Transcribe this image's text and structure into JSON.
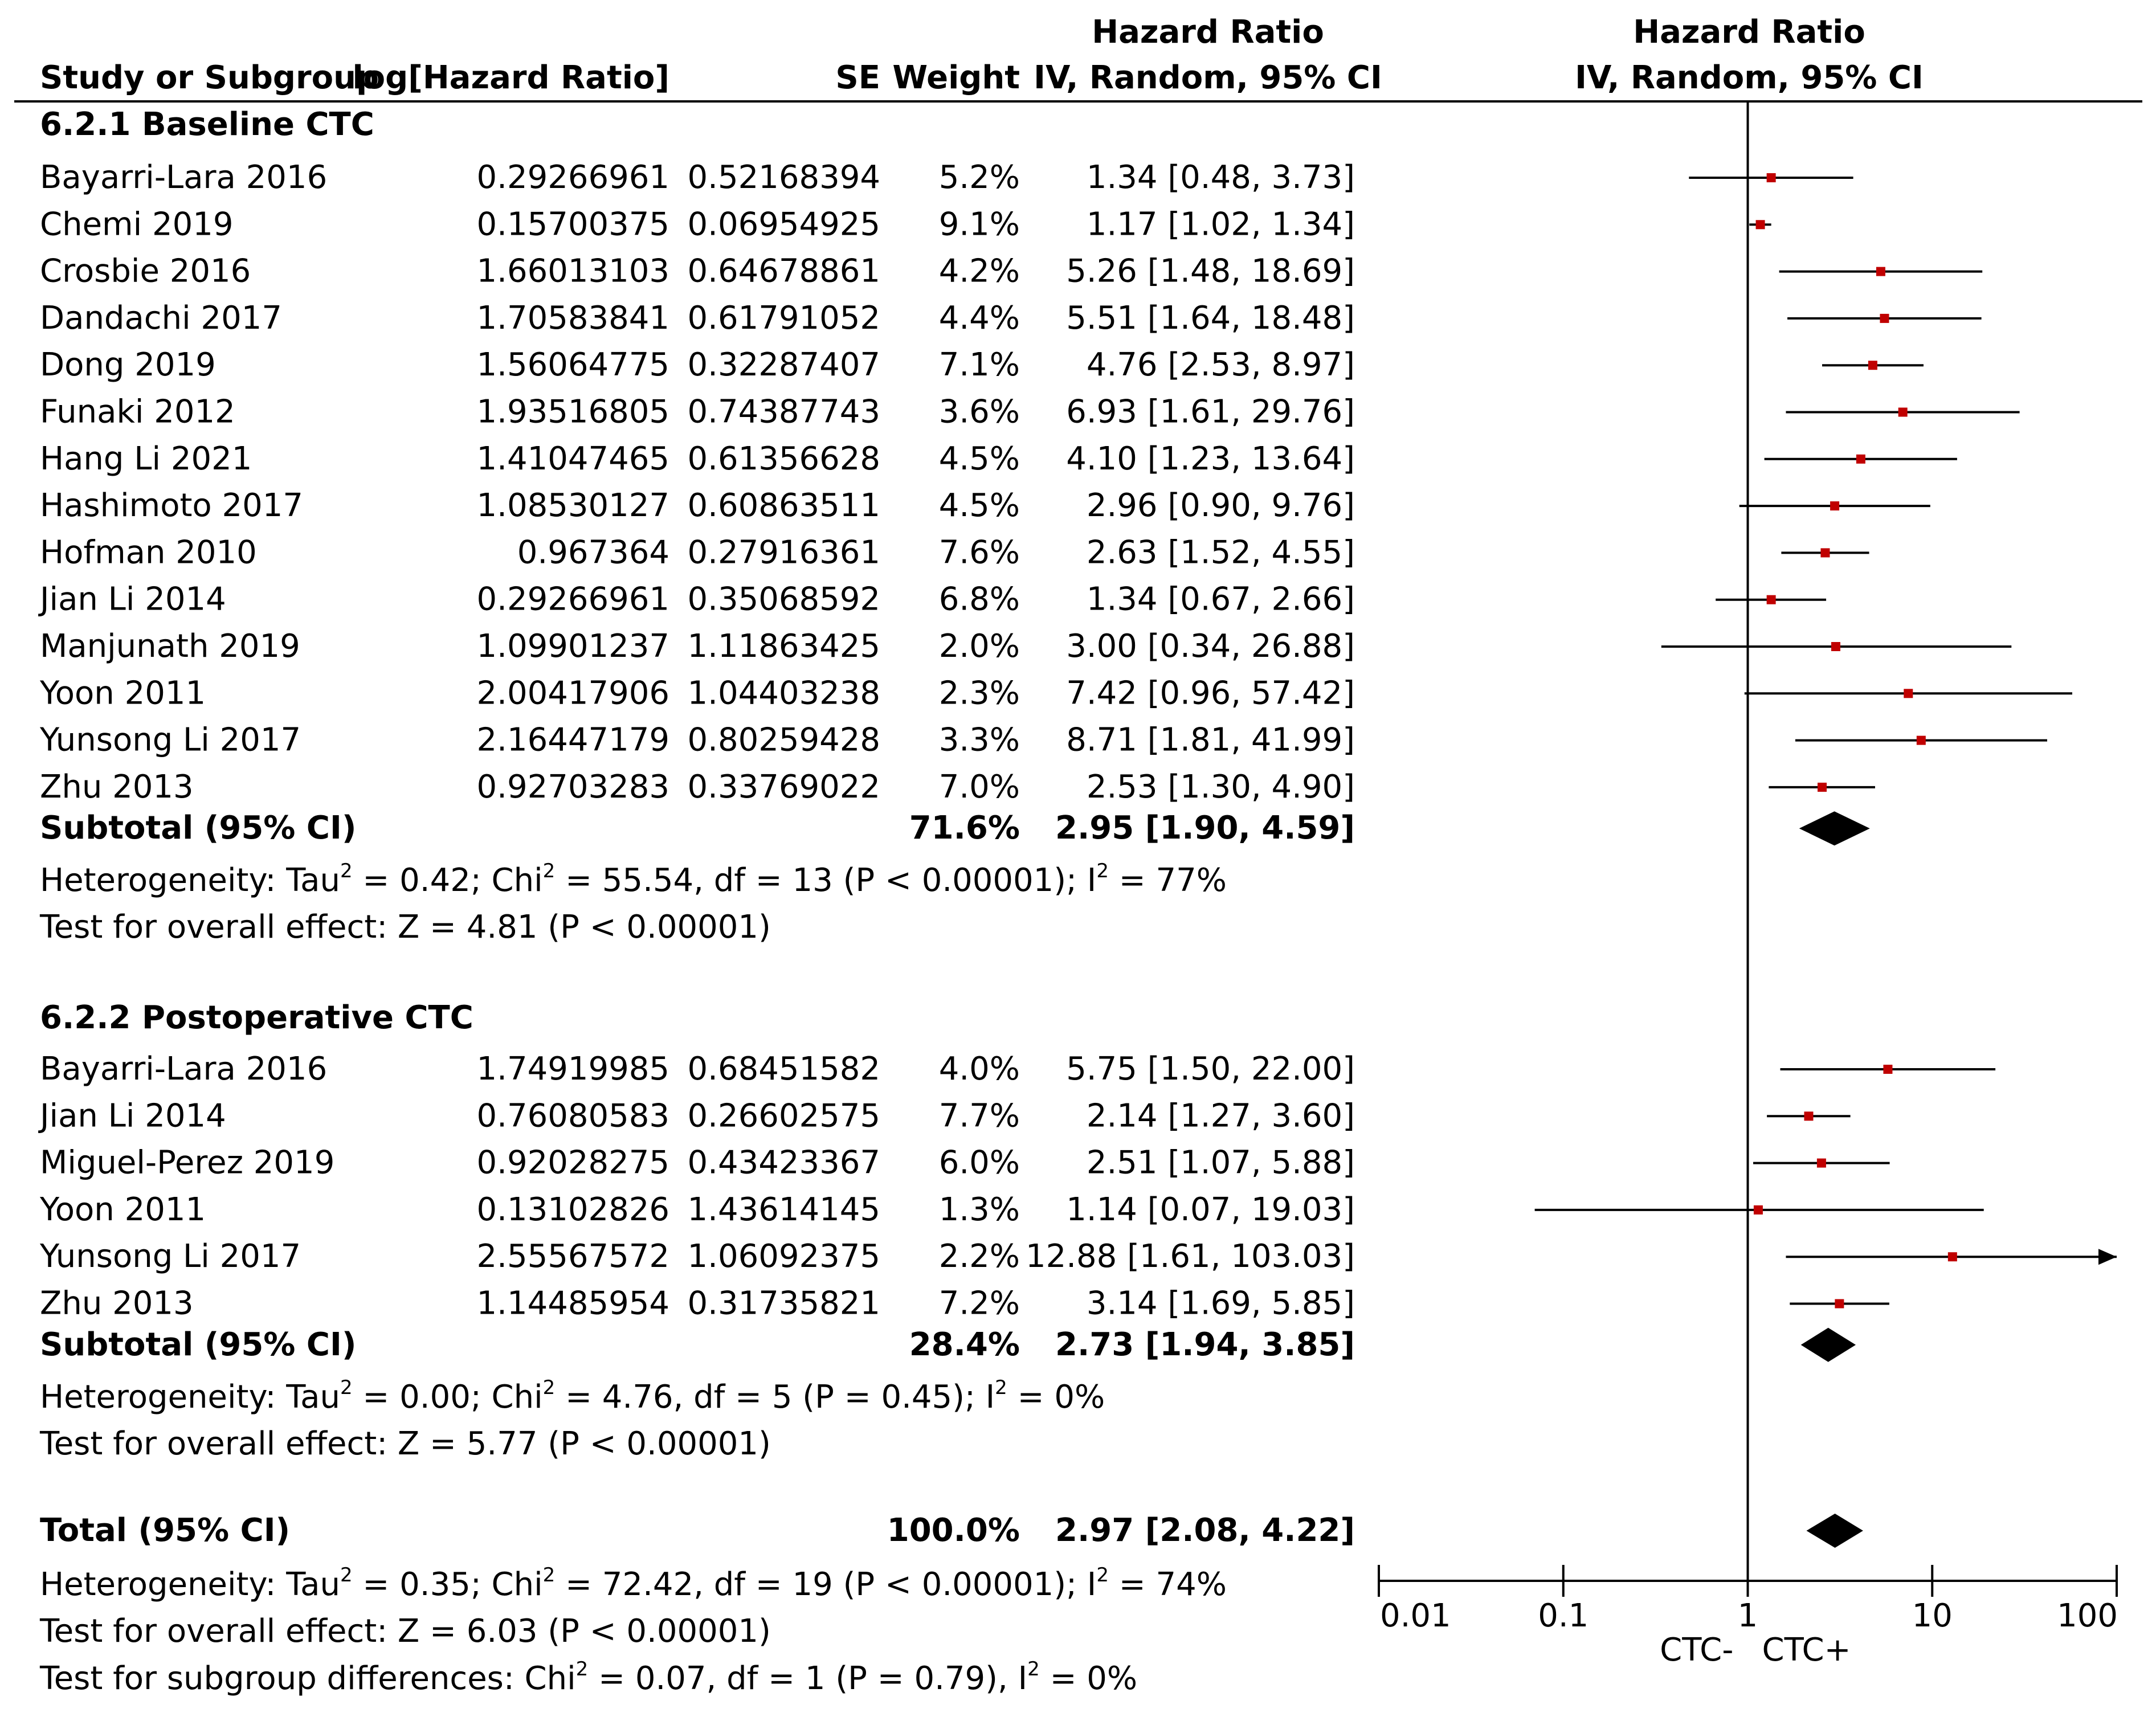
{
  "chart_data": {
    "type": "forest",
    "headers": {
      "study": "Study or Subgroup",
      "loghr": "log[Hazard Ratio]",
      "se": "SE",
      "weight": "Weight",
      "hr_line1": "Hazard Ratio",
      "hr_line2": "IV, Random, 95% CI",
      "plot_line1": "Hazard Ratio",
      "plot_line2": "IV, Random, 95% CI"
    },
    "subgroups": [
      {
        "title": "6.2.1 Baseline CTC",
        "studies": [
          {
            "name": "Bayarri-Lara 2016",
            "loghr": "0.29266961",
            "se": "0.52168394",
            "weight": "5.2%",
            "ci_text": "1.34 [0.48, 3.73]",
            "hr": 1.34,
            "lo": 0.48,
            "hi": 3.73
          },
          {
            "name": "Chemi 2019",
            "loghr": "0.15700375",
            "se": "0.06954925",
            "weight": "9.1%",
            "ci_text": "1.17 [1.02, 1.34]",
            "hr": 1.17,
            "lo": 1.02,
            "hi": 1.34
          },
          {
            "name": "Crosbie 2016",
            "loghr": "1.66013103",
            "se": "0.64678861",
            "weight": "4.2%",
            "ci_text": "5.26 [1.48, 18.69]",
            "hr": 5.26,
            "lo": 1.48,
            "hi": 18.69
          },
          {
            "name": "Dandachi 2017",
            "loghr": "1.70583841",
            "se": "0.61791052",
            "weight": "4.4%",
            "ci_text": "5.51 [1.64, 18.48]",
            "hr": 5.51,
            "lo": 1.64,
            "hi": 18.48
          },
          {
            "name": "Dong 2019",
            "loghr": "1.56064775",
            "se": "0.32287407",
            "weight": "7.1%",
            "ci_text": "4.76 [2.53, 8.97]",
            "hr": 4.76,
            "lo": 2.53,
            "hi": 8.97
          },
          {
            "name": "Funaki 2012",
            "loghr": "1.93516805",
            "se": "0.74387743",
            "weight": "3.6%",
            "ci_text": "6.93 [1.61, 29.76]",
            "hr": 6.93,
            "lo": 1.61,
            "hi": 29.76
          },
          {
            "name": "Hang Li 2021",
            "loghr": "1.41047465",
            "se": "0.61356628",
            "weight": "4.5%",
            "ci_text": "4.10 [1.23, 13.64]",
            "hr": 4.1,
            "lo": 1.23,
            "hi": 13.64
          },
          {
            "name": "Hashimoto 2017",
            "loghr": "1.08530127",
            "se": "0.60863511",
            "weight": "4.5%",
            "ci_text": "2.96 [0.90, 9.76]",
            "hr": 2.96,
            "lo": 0.9,
            "hi": 9.76
          },
          {
            "name": "Hofman 2010",
            "loghr": "0.967364",
            "se": "0.27916361",
            "weight": "7.6%",
            "ci_text": "2.63 [1.52, 4.55]",
            "hr": 2.63,
            "lo": 1.52,
            "hi": 4.55
          },
          {
            "name": "Jian Li 2014",
            "loghr": "0.29266961",
            "se": "0.35068592",
            "weight": "6.8%",
            "ci_text": "1.34 [0.67, 2.66]",
            "hr": 1.34,
            "lo": 0.67,
            "hi": 2.66
          },
          {
            "name": "Manjunath 2019",
            "loghr": "1.09901237",
            "se": "1.11863425",
            "weight": "2.0%",
            "ci_text": "3.00 [0.34, 26.88]",
            "hr": 3.0,
            "lo": 0.34,
            "hi": 26.88
          },
          {
            "name": "Yoon 2011",
            "loghr": "2.00417906",
            "se": "1.04403238",
            "weight": "2.3%",
            "ci_text": "7.42 [0.96, 57.42]",
            "hr": 7.42,
            "lo": 0.96,
            "hi": 57.42
          },
          {
            "name": "Yunsong Li 2017",
            "loghr": "2.16447179",
            "se": "0.80259428",
            "weight": "3.3%",
            "ci_text": "8.71 [1.81, 41.99]",
            "hr": 8.71,
            "lo": 1.81,
            "hi": 41.99
          },
          {
            "name": "Zhu 2013",
            "loghr": "0.92703283",
            "se": "0.33769022",
            "weight": "7.0%",
            "ci_text": "2.53 [1.30, 4.90]",
            "hr": 2.53,
            "lo": 1.3,
            "hi": 4.9
          }
        ],
        "subtotal": {
          "label": "Subtotal (95% CI)",
          "weight": "71.6%",
          "ci_text": "2.95 [1.90, 4.59]",
          "hr": 2.95,
          "lo": 1.9,
          "hi": 4.59
        },
        "heterogeneity": {
          "a": "Heterogeneity: Tau",
          "b": " = 0.42; Chi",
          "c": " = 55.54, df = 13 (P < 0.00001); I",
          "d": " = 77%"
        },
        "overall_effect": "Test for overall effect: Z = 4.81 (P < 0.00001)"
      },
      {
        "title": "6.2.2 Postoperative CTC",
        "studies": [
          {
            "name": "Bayarri-Lara 2016",
            "loghr": "1.74919985",
            "se": "0.68451582",
            "weight": "4.0%",
            "ci_text": "5.75 [1.50, 22.00]",
            "hr": 5.75,
            "lo": 1.5,
            "hi": 22.0
          },
          {
            "name": "Jian Li 2014",
            "loghr": "0.76080583",
            "se": "0.26602575",
            "weight": "7.7%",
            "ci_text": "2.14 [1.27, 3.60]",
            "hr": 2.14,
            "lo": 1.27,
            "hi": 3.6
          },
          {
            "name": "Miguel-Perez 2019",
            "loghr": "0.92028275",
            "se": "0.43423367",
            "weight": "6.0%",
            "ci_text": "2.51 [1.07, 5.88]",
            "hr": 2.51,
            "lo": 1.07,
            "hi": 5.88
          },
          {
            "name": "Yoon 2011",
            "loghr": "0.13102826",
            "se": "1.43614145",
            "weight": "1.3%",
            "ci_text": "1.14 [0.07, 19.03]",
            "hr": 1.14,
            "lo": 0.07,
            "hi": 19.03
          },
          {
            "name": "Yunsong Li 2017",
            "loghr": "2.55567572",
            "se": "1.06092375",
            "weight": "2.2%",
            "ci_text": "12.88 [1.61, 103.03]",
            "hr": 12.88,
            "lo": 1.61,
            "hi": 103.03
          },
          {
            "name": "Zhu 2013",
            "loghr": "1.14485954",
            "se": "0.31735821",
            "weight": "7.2%",
            "ci_text": "3.14 [1.69, 5.85]",
            "hr": 3.14,
            "lo": 1.69,
            "hi": 5.85
          }
        ],
        "subtotal": {
          "label": "Subtotal (95% CI)",
          "weight": "28.4%",
          "ci_text": "2.73 [1.94, 3.85]",
          "hr": 2.73,
          "lo": 1.94,
          "hi": 3.85
        },
        "heterogeneity": {
          "a": "Heterogeneity: Tau",
          "b": " = 0.00; Chi",
          "c": " = 4.76, df = 5 (P = 0.45); I",
          "d": " = 0%"
        },
        "overall_effect": "Test for overall effect: Z = 5.77 (P < 0.00001)"
      }
    ],
    "total": {
      "label": "Total (95% CI)",
      "weight": "100.0%",
      "ci_text": "2.97 [2.08, 4.22]",
      "hr": 2.97,
      "lo": 2.08,
      "hi": 4.22,
      "heterogeneity": {
        "a": "Heterogeneity: Tau",
        "b": " = 0.35; Chi",
        "c": " = 72.42, df = 19 (P < 0.00001); I",
        "d": " = 74%"
      },
      "overall_effect": "Test for overall effect: Z = 6.03 (P < 0.00001)",
      "subgroup_diff": {
        "a": "Test for subgroup differences: Chi",
        "b": " = 0.07, df = 1 (P = 0.79), I",
        "c": " = 0%"
      }
    },
    "sup2": "2",
    "axis": {
      "scale": "log",
      "range": [
        0.01,
        100
      ],
      "ticks": [
        0.01,
        0.1,
        1,
        10,
        100
      ],
      "tick_labels": [
        "0.01",
        "0.1",
        "1",
        "10",
        "100"
      ],
      "left_label": "CTC-",
      "right_label": "CTC+"
    },
    "colors": {
      "marker": "#c00000",
      "line": "#000000",
      "diamond": "#000000"
    }
  }
}
